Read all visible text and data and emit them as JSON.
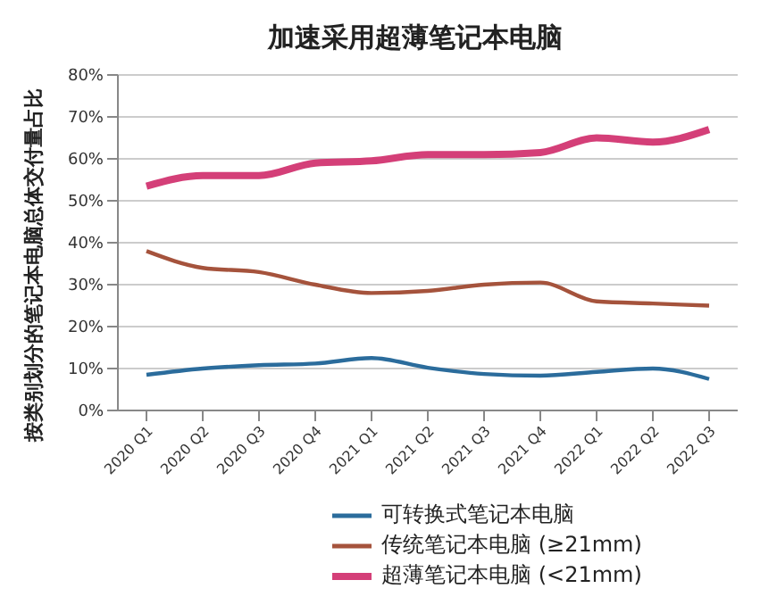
{
  "chart_data": {
    "type": "line",
    "title": "加速采用超薄笔记本电脑",
    "ylabel": "按类别划分的笔记本电脑总体交付量占比",
    "categories": [
      "2020 Q1",
      "2020 Q2",
      "2020 Q3",
      "2020 Q4",
      "2021 Q1",
      "2021 Q2",
      "2021 Q3",
      "2021 Q4",
      "2022 Q1",
      "2022 Q2",
      "2022 Q3"
    ],
    "series": [
      {
        "name": "可转换式笔记本电脑",
        "color": "#2b6c9c",
        "values": [
          8.5,
          10,
          10.8,
          11.2,
          12.5,
          10.2,
          8.7,
          8.3,
          9.2,
          10,
          7.5
        ]
      },
      {
        "name": "传统笔记本电脑 (≥21mm)",
        "color": "#a5533c",
        "values": [
          38,
          34,
          33,
          30,
          28,
          28.5,
          30,
          30.5,
          26,
          25.5,
          25
        ]
      },
      {
        "name": "超薄笔记本电脑 (<21mm)",
        "color": "#d43f78",
        "values": [
          53.5,
          56,
          56,
          59,
          59.5,
          61,
          61,
          61.5,
          65,
          64,
          67
        ]
      }
    ],
    "ylim": [
      0,
      80
    ],
    "yticks": [
      {
        "value": 0,
        "label": "0%"
      },
      {
        "value": 10,
        "label": "10%"
      },
      {
        "value": 20,
        "label": "20%"
      },
      {
        "value": 30,
        "label": "30%"
      },
      {
        "value": 40,
        "label": "40%"
      },
      {
        "value": 50,
        "label": "50%"
      },
      {
        "value": 60,
        "label": "60%"
      },
      {
        "value": 70,
        "label": "70%"
      },
      {
        "value": 80,
        "label": "80%"
      }
    ],
    "grid": "y",
    "legend": "bottom"
  }
}
